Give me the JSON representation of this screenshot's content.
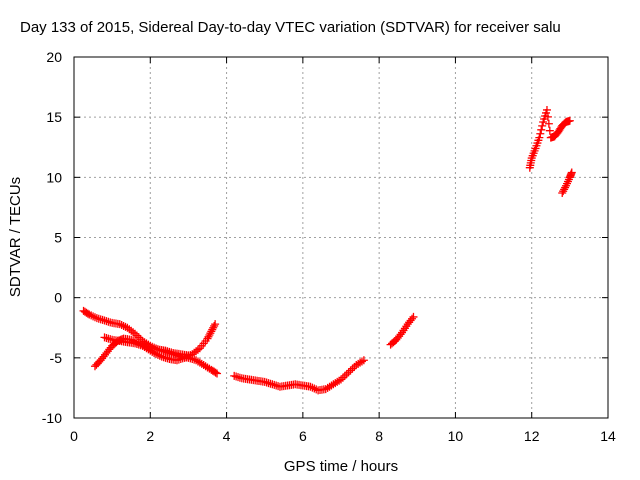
{
  "chart_data": {
    "type": "scatter",
    "title": "Day 133 of 2015, Sidereal Day-to-day VTEC variation (SDTVAR) for receiver salu",
    "xlabel": "GPS time / hours",
    "ylabel": "SDTVAR / TECUs",
    "xlim": [
      0,
      14
    ],
    "ylim": [
      -10,
      20
    ],
    "xticks": [
      "0",
      "2",
      "4",
      "6",
      "8",
      "10",
      "12",
      "14"
    ],
    "yticks": [
      "-10",
      "-5",
      "0",
      "5",
      "10",
      "15",
      "20"
    ],
    "grid": true,
    "marker": "+",
    "color": "#ff0000",
    "series": [
      {
        "points": [
          [
            0.25,
            -1.1
          ],
          [
            0.4,
            -1.4
          ],
          [
            0.6,
            -1.7
          ],
          [
            0.8,
            -1.9
          ],
          [
            1.0,
            -2.1
          ],
          [
            1.2,
            -2.2
          ],
          [
            1.4,
            -2.5
          ],
          [
            1.6,
            -3.0
          ],
          [
            1.8,
            -3.6
          ],
          [
            2.0,
            -4.0
          ],
          [
            2.2,
            -4.3
          ],
          [
            2.4,
            -4.5
          ],
          [
            2.6,
            -4.7
          ],
          [
            2.8,
            -4.9
          ],
          [
            3.0,
            -5.0
          ],
          [
            3.2,
            -5.2
          ],
          [
            3.4,
            -5.6
          ],
          [
            3.6,
            -6.0
          ],
          [
            3.75,
            -6.3
          ]
        ]
      },
      {
        "points": [
          [
            0.55,
            -5.7
          ],
          [
            0.7,
            -5.2
          ],
          [
            0.85,
            -4.6
          ],
          [
            1.0,
            -4.0
          ],
          [
            1.15,
            -3.6
          ],
          [
            1.3,
            -3.4
          ],
          [
            1.5,
            -3.5
          ],
          [
            1.7,
            -3.8
          ],
          [
            1.9,
            -4.2
          ],
          [
            2.1,
            -4.6
          ],
          [
            2.3,
            -4.9
          ],
          [
            2.5,
            -5.1
          ],
          [
            2.7,
            -5.2
          ],
          [
            2.9,
            -5.0
          ],
          [
            3.1,
            -4.7
          ],
          [
            3.3,
            -4.2
          ],
          [
            3.5,
            -3.4
          ],
          [
            3.6,
            -2.8
          ],
          [
            3.7,
            -2.2
          ]
        ]
      },
      {
        "points": [
          [
            0.8,
            -3.3
          ],
          [
            1.0,
            -3.5
          ],
          [
            1.2,
            -3.6
          ],
          [
            1.4,
            -3.7
          ],
          [
            1.6,
            -3.8
          ],
          [
            1.8,
            -4.0
          ],
          [
            2.0,
            -4.2
          ],
          [
            2.2,
            -4.3
          ],
          [
            2.4,
            -4.4
          ],
          [
            2.6,
            -4.6
          ],
          [
            2.8,
            -4.7
          ],
          [
            3.0,
            -4.8
          ]
        ]
      },
      {
        "points": [
          [
            4.2,
            -6.5
          ],
          [
            4.4,
            -6.7
          ],
          [
            4.6,
            -6.8
          ],
          [
            4.8,
            -6.9
          ],
          [
            5.0,
            -7.0
          ],
          [
            5.2,
            -7.2
          ],
          [
            5.4,
            -7.4
          ],
          [
            5.6,
            -7.3
          ],
          [
            5.8,
            -7.2
          ],
          [
            6.0,
            -7.3
          ],
          [
            6.2,
            -7.4
          ],
          [
            6.4,
            -7.7
          ],
          [
            6.6,
            -7.6
          ],
          [
            6.8,
            -7.2
          ],
          [
            7.0,
            -6.8
          ],
          [
            7.2,
            -6.2
          ],
          [
            7.4,
            -5.6
          ],
          [
            7.6,
            -5.2
          ]
        ]
      },
      {
        "points": [
          [
            8.3,
            -3.9
          ],
          [
            8.45,
            -3.5
          ],
          [
            8.6,
            -2.9
          ],
          [
            8.75,
            -2.2
          ],
          [
            8.9,
            -1.6
          ]
        ]
      },
      {
        "points": [
          [
            11.95,
            10.8
          ],
          [
            12.0,
            11.6
          ],
          [
            12.1,
            12.4
          ],
          [
            12.2,
            13.3
          ],
          [
            12.3,
            14.6
          ],
          [
            12.4,
            15.6
          ],
          [
            12.5,
            13.3
          ],
          [
            12.6,
            13.4
          ],
          [
            12.7,
            13.8
          ],
          [
            12.8,
            14.3
          ],
          [
            12.9,
            14.6
          ],
          [
            13.0,
            14.7
          ]
        ]
      },
      {
        "points": [
          [
            12.8,
            8.7
          ],
          [
            12.9,
            9.3
          ],
          [
            13.0,
            10.0
          ],
          [
            13.05,
            10.4
          ]
        ]
      }
    ]
  }
}
